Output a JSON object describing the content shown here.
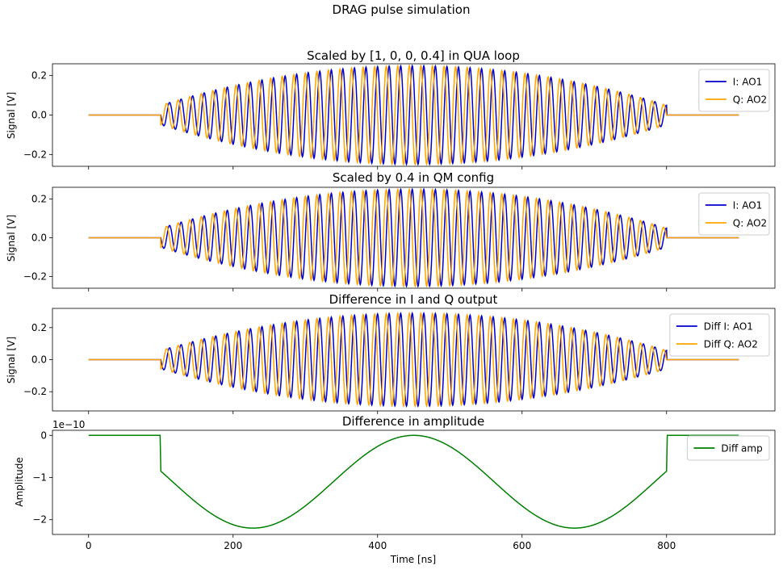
{
  "figure": {
    "suptitle": "DRAG pulse simulation"
  },
  "chart_data": [
    {
      "type": "line",
      "title": "Scaled by [1, 0, 0, 0.4] in QUA loop",
      "xlabel": "",
      "ylabel": "Signal [V]",
      "xlim": [
        -50,
        950
      ],
      "ylim": [
        -0.26,
        0.26
      ],
      "yticks": [
        -0.2,
        0.0,
        0.2
      ],
      "ytick_labels": [
        "−0.2",
        "0.0",
        "0.2"
      ],
      "xticks": [],
      "legend": "upper right",
      "series": [
        {
          "name": "I: AO1",
          "color": "#0000cc",
          "kind": "drag",
          "amp": 0.25,
          "phase": 0.0,
          "t_start": 100,
          "t_end": 800,
          "period": 16,
          "t_max": 900
        },
        {
          "name": "Q: AO2",
          "color": "#ffa500",
          "kind": "drag",
          "amp": 0.25,
          "phase": 1.5708,
          "t_start": 100,
          "t_end": 800,
          "period": 16,
          "t_max": 900
        }
      ]
    },
    {
      "type": "line",
      "title": "Scaled by 0.4 in QM config",
      "xlabel": "",
      "ylabel": "Signal [V]",
      "xlim": [
        -50,
        950
      ],
      "ylim": [
        -0.26,
        0.26
      ],
      "yticks": [
        -0.2,
        0.0,
        0.2
      ],
      "ytick_labels": [
        "−0.2",
        "0.0",
        "0.2"
      ],
      "xticks": [],
      "legend": "upper right",
      "series": [
        {
          "name": "I: AO1",
          "color": "#0000cc",
          "kind": "drag",
          "amp": 0.25,
          "phase": 0.0,
          "t_start": 100,
          "t_end": 800,
          "period": 16,
          "t_max": 900
        },
        {
          "name": "Q: AO2",
          "color": "#ffa500",
          "kind": "drag",
          "amp": 0.25,
          "phase": 1.5708,
          "t_start": 100,
          "t_end": 800,
          "period": 16,
          "t_max": 900
        }
      ]
    },
    {
      "type": "line",
      "title": "Difference in I and Q output",
      "xlabel": "",
      "ylabel": "Signal [V]",
      "xlim": [
        -50,
        950
      ],
      "ylim": [
        -0.32,
        0.32
      ],
      "yticks": [
        -0.2,
        0.0,
        0.2
      ],
      "ytick_labels": [
        "−0.2",
        "0.0",
        "0.2"
      ],
      "xticks": [],
      "legend": "upper right",
      "series": [
        {
          "name": "Diff I: AO1",
          "color": "#0000cc",
          "kind": "drag",
          "amp": 0.29,
          "phase": 0.0,
          "t_start": 100,
          "t_end": 800,
          "period": 16,
          "t_max": 900
        },
        {
          "name": "Diff Q: AO2",
          "color": "#ffa500",
          "kind": "drag",
          "amp": 0.29,
          "phase": 1.5708,
          "t_start": 100,
          "t_end": 800,
          "period": 16,
          "t_max": 900
        }
      ]
    },
    {
      "type": "line",
      "title": "Difference in amplitude",
      "xlabel": "Time [ns]",
      "ylabel": "Amplitude",
      "offset_text": "1e−10",
      "xlim": [
        -50,
        950
      ],
      "ylim": [
        -2.35,
        0.12
      ],
      "yticks": [
        -2,
        -1,
        0
      ],
      "ytick_labels": [
        "−2",
        "−1",
        "0"
      ],
      "xticks": [
        0,
        200,
        400,
        600,
        800
      ],
      "xtick_labels": [
        "0",
        "200",
        "400",
        "600",
        "800"
      ],
      "legend": "upper right",
      "series": [
        {
          "name": "Diff amp",
          "color": "#008000",
          "kind": "cos",
          "amp": 2.2,
          "t_start": 100,
          "t_end": 800,
          "center": 450,
          "half_period": 445,
          "t_max": 900
        }
      ]
    }
  ]
}
